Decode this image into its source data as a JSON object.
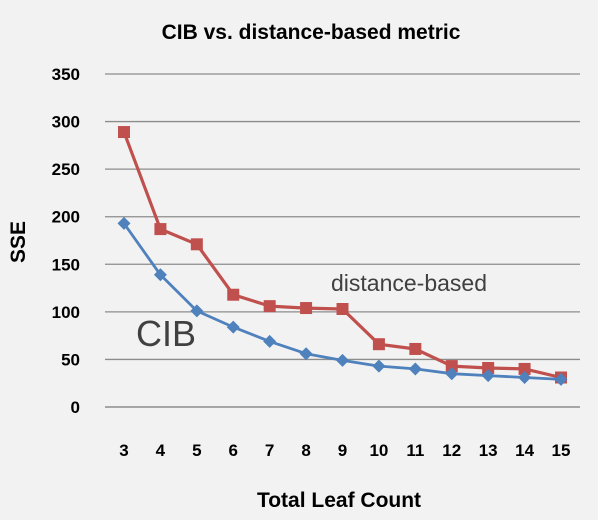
{
  "chart_data": {
    "type": "line",
    "title": "CIB vs. distance-based metric",
    "xlabel": "Total Leaf Count",
    "ylabel": "SSE",
    "x": [
      3,
      4,
      5,
      6,
      7,
      8,
      9,
      10,
      11,
      12,
      13,
      14,
      15
    ],
    "ylim": [
      0,
      350
    ],
    "yticks": [
      0,
      50,
      100,
      150,
      200,
      250,
      300,
      350
    ],
    "grid": true,
    "legend": "none",
    "series": [
      {
        "name": "distance-based",
        "color": "#c0504d",
        "marker": "square",
        "values": [
          289,
          187,
          171,
          118,
          106,
          104,
          103,
          66,
          61,
          43,
          41,
          40,
          31
        ]
      },
      {
        "name": "CIB",
        "color": "#4f81bd",
        "marker": "diamond",
        "values": [
          193,
          139,
          101,
          84,
          69,
          56,
          49,
          43,
          40,
          35,
          33,
          31,
          29
        ]
      }
    ],
    "annotations": [
      {
        "text": "distance-based",
        "series": "distance-based"
      },
      {
        "text": "CIB",
        "series": "CIB"
      }
    ]
  }
}
